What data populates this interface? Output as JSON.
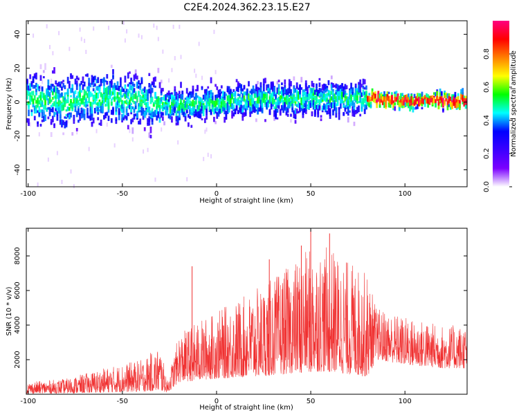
{
  "title": "C2E4.2024.362.23.15.E27",
  "chart_data": [
    {
      "type": "heatmap",
      "name": "spectrogram",
      "xlabel": "Height of straight line (km)",
      "ylabel": "Frequency (Hz)",
      "xlim": [
        -101,
        133
      ],
      "ylim": [
        -50,
        48
      ],
      "xticks": [
        -100,
        -50,
        0,
        50,
        100
      ],
      "yticks": [
        -40,
        -20,
        0,
        20,
        40
      ],
      "colorbar": {
        "label": "Normalized spectral amplitude",
        "range": [
          0,
          1
        ],
        "ticks": [
          "0.0",
          "0.2",
          "0.4",
          "0.6",
          "0.8"
        ],
        "colors": [
          "#ffffff",
          "#7b00ff",
          "#3b00ff",
          "#0000ff",
          "#00ffff",
          "#00ff00",
          "#ffff00",
          "#ff8000",
          "#ff0000",
          "#ff0080"
        ]
      },
      "band_center_hz": [
        {
          "x": -100,
          "f": 2
        },
        {
          "x": -80,
          "f": 0
        },
        {
          "x": -60,
          "f": 3
        },
        {
          "x": -40,
          "f": 0
        },
        {
          "x": -20,
          "f": -2
        },
        {
          "x": 0,
          "f": 0
        },
        {
          "x": 20,
          "f": 2
        },
        {
          "x": 40,
          "f": 1
        },
        {
          "x": 60,
          "f": 2
        },
        {
          "x": 80,
          "f": 2
        },
        {
          "x": 100,
          "f": 1
        },
        {
          "x": 120,
          "f": 1
        },
        {
          "x": 133,
          "f": 1
        }
      ]
    },
    {
      "type": "line",
      "name": "snr",
      "color": "#f03030",
      "xlabel": "Height of straight line (km)",
      "ylabel": "SNR (10 * v/v)",
      "xlim": [
        -101,
        133
      ],
      "ylim": [
        0,
        9600
      ],
      "xticks": [
        -100,
        -50,
        0,
        50,
        100
      ],
      "yticks": [
        2000,
        4000,
        6000,
        8000
      ],
      "envelope": [
        {
          "x": -101,
          "lo": 50,
          "hi": 700
        },
        {
          "x": -80,
          "lo": 50,
          "hi": 900
        },
        {
          "x": -60,
          "lo": 100,
          "hi": 1500
        },
        {
          "x": -40,
          "lo": 150,
          "hi": 2000
        },
        {
          "x": -30,
          "lo": 200,
          "hi": 2800
        },
        {
          "x": -26,
          "lo": 100,
          "hi": 800
        },
        {
          "x": -20,
          "lo": 700,
          "hi": 3500
        },
        {
          "x": -10,
          "lo": 800,
          "hi": 4200
        },
        {
          "x": 0,
          "lo": 900,
          "hi": 4800
        },
        {
          "x": 20,
          "lo": 1000,
          "hi": 6000
        },
        {
          "x": 40,
          "lo": 1200,
          "hi": 7500
        },
        {
          "x": 50,
          "lo": 1300,
          "hi": 8500
        },
        {
          "x": 60,
          "lo": 1300,
          "hi": 8500
        },
        {
          "x": 80,
          "lo": 1000,
          "hi": 7000
        },
        {
          "x": 85,
          "lo": 2000,
          "hi": 5000
        },
        {
          "x": 100,
          "lo": 1700,
          "hi": 4500
        },
        {
          "x": 120,
          "lo": 1500,
          "hi": 4000
        },
        {
          "x": 133,
          "lo": 1500,
          "hi": 4000
        }
      ],
      "spikes": [
        {
          "x": -13,
          "y": 7400
        },
        {
          "x": 50,
          "y": 9500
        },
        {
          "x": 60,
          "y": 9300
        },
        {
          "x": 28,
          "y": 7800
        },
        {
          "x": 45,
          "y": 8600
        }
      ]
    }
  ]
}
